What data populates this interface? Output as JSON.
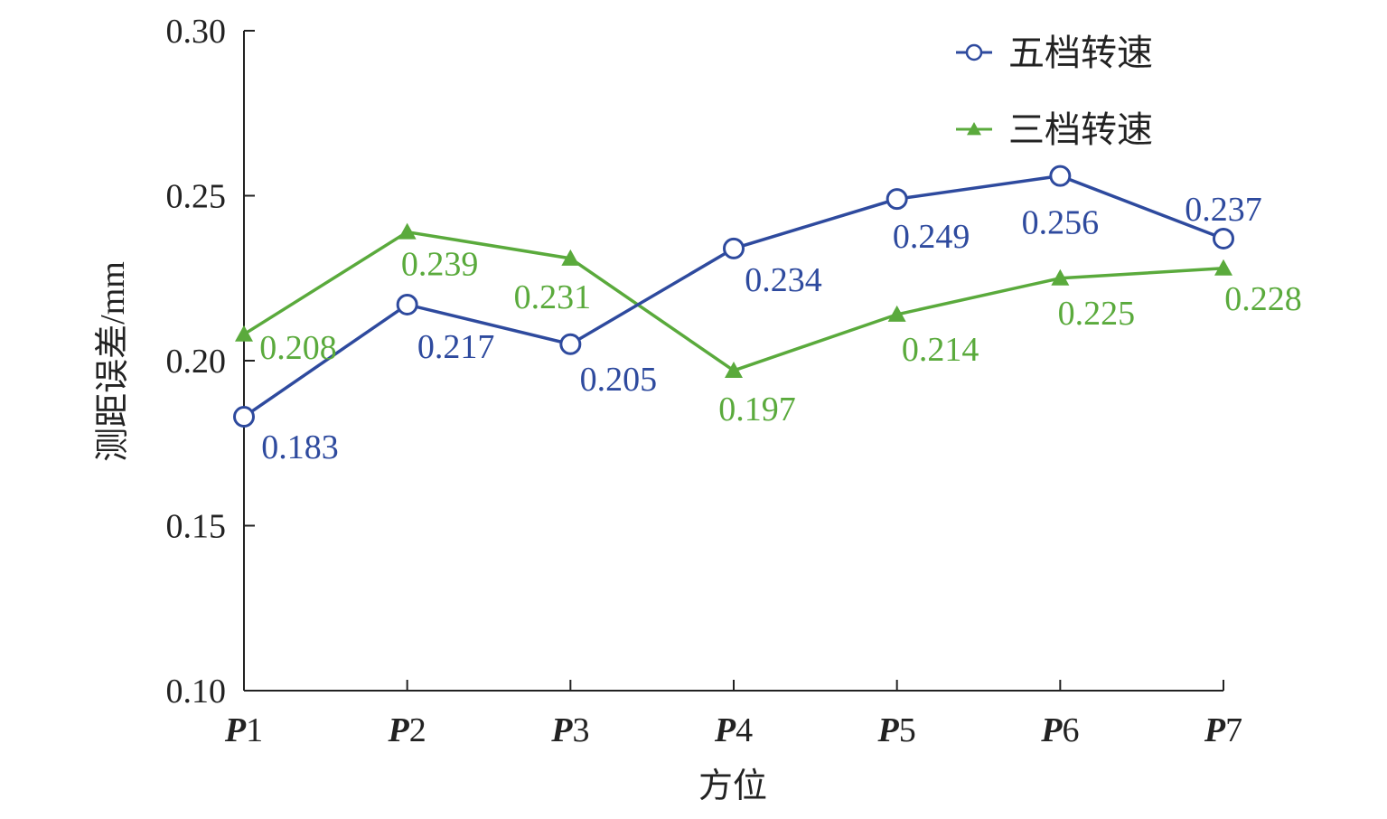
{
  "chart_data": {
    "type": "line",
    "xlabel": "方位",
    "ylabel": "测距误差/mm",
    "categories": [
      {
        "bold": "P",
        "num": "1"
      },
      {
        "bold": "P",
        "num": "2"
      },
      {
        "bold": "P",
        "num": "3"
      },
      {
        "bold": "P",
        "num": "4"
      },
      {
        "bold": "P",
        "num": "5"
      },
      {
        "bold": "P",
        "num": "6"
      },
      {
        "bold": "P",
        "num": "7"
      }
    ],
    "ylim": [
      0.1,
      0.3
    ],
    "yticks": [
      "0.10",
      "0.15",
      "0.20",
      "0.25",
      "0.30"
    ],
    "grid": false,
    "legend_position": "top-right",
    "series": [
      {
        "name": "五档转速",
        "marker": "circle",
        "color": "#2e4a9e",
        "values": [
          0.183,
          0.217,
          0.205,
          0.234,
          0.249,
          0.256,
          0.237
        ],
        "labels": [
          "0.183",
          "0.217",
          "0.205",
          "0.234",
          "0.249",
          "0.256",
          "0.237"
        ]
      },
      {
        "name": "三档转速",
        "marker": "triangle",
        "color": "#5aaa3c",
        "values": [
          0.208,
          0.239,
          0.231,
          0.197,
          0.214,
          0.225,
          0.228
        ],
        "labels": [
          "0.208",
          "0.239",
          "0.231",
          "0.197",
          "0.214",
          "0.225",
          "0.228"
        ]
      }
    ]
  }
}
